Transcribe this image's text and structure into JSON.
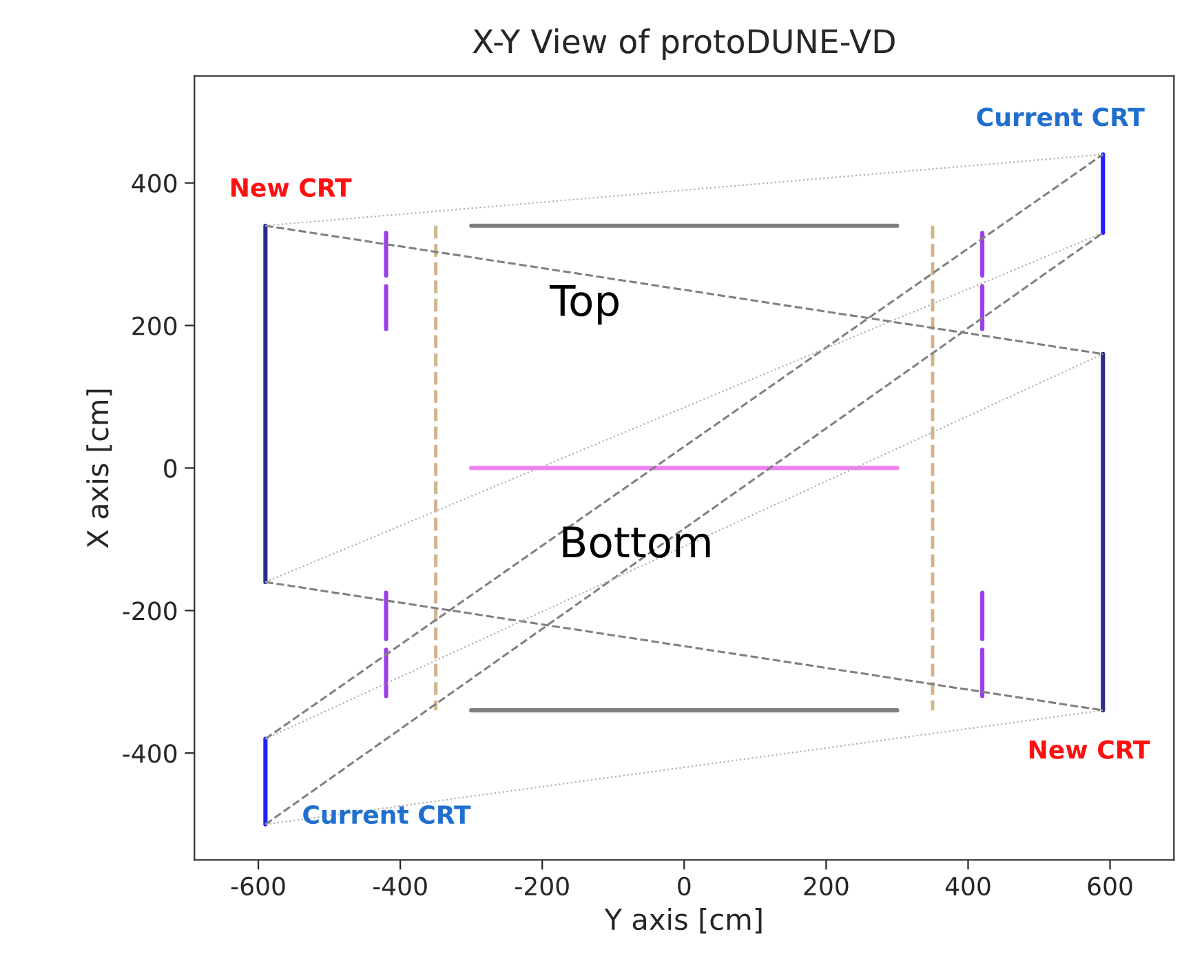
{
  "chart_data": {
    "type": "line",
    "title": "X-Y View of protoDUNE-VD",
    "xlabel": "Y axis [cm]",
    "ylabel": "X axis [cm]",
    "xlim": [
      -690,
      690
    ],
    "ylim": [
      -550,
      550
    ],
    "xticks": [
      -600,
      -400,
      -200,
      0,
      200,
      400,
      600
    ],
    "yticks": [
      -400,
      -200,
      0,
      200,
      400
    ],
    "grid": false,
    "legend": false,
    "series": [
      {
        "x": [
          -590,
          -590
        ],
        "values": [
          340,
          -160
        ],
        "color": "#2b2b8f",
        "line_style": "solid"
      },
      {
        "x": [
          590,
          590
        ],
        "values": [
          160,
          -340
        ],
        "color": "#2b2b8f",
        "line_style": "solid"
      },
      {
        "x": [
          590,
          590
        ],
        "values": [
          440,
          330
        ],
        "color": "#2020ff",
        "line_style": "solid"
      },
      {
        "x": [
          -590,
          -590
        ],
        "values": [
          -380,
          -500
        ],
        "color": "#2020ff",
        "line_style": "solid"
      },
      {
        "x": [
          -300,
          300
        ],
        "values": [
          340,
          340
        ],
        "color": "#808080",
        "line_style": "solid"
      },
      {
        "x": [
          -300,
          300
        ],
        "values": [
          -340,
          -340
        ],
        "color": "#808080",
        "line_style": "solid"
      },
      {
        "x": [
          -300,
          300
        ],
        "values": [
          0,
          0
        ],
        "color": "#ee82ee",
        "line_style": "solid"
      },
      {
        "x": [
          -350,
          -350
        ],
        "values": [
          340,
          -340
        ],
        "color": "#d2b48c",
        "line_style": "dashed"
      },
      {
        "x": [
          350,
          350
        ],
        "values": [
          340,
          -340
        ],
        "color": "#d2b48c",
        "line_style": "dashed"
      },
      {
        "x": [
          -420,
          -420
        ],
        "values": [
          330,
          270
        ],
        "color": "#9b40e8",
        "line_style": "solid"
      },
      {
        "x": [
          -420,
          -420
        ],
        "values": [
          255,
          195
        ],
        "color": "#9b40e8",
        "line_style": "solid"
      },
      {
        "x": [
          -420,
          -420
        ],
        "values": [
          -175,
          -240
        ],
        "color": "#9b40e8",
        "line_style": "solid"
      },
      {
        "x": [
          -420,
          -420
        ],
        "values": [
          -255,
          -320
        ],
        "color": "#9b40e8",
        "line_style": "solid"
      },
      {
        "x": [
          420,
          420
        ],
        "values": [
          330,
          270
        ],
        "color": "#9b40e8",
        "line_style": "solid"
      },
      {
        "x": [
          420,
          420
        ],
        "values": [
          255,
          195
        ],
        "color": "#9b40e8",
        "line_style": "solid"
      },
      {
        "x": [
          420,
          420
        ],
        "values": [
          -175,
          -240
        ],
        "color": "#9b40e8",
        "line_style": "solid"
      },
      {
        "x": [
          420,
          420
        ],
        "values": [
          -255,
          -320
        ],
        "color": "#9b40e8",
        "line_style": "solid"
      },
      {
        "x": [
          -590,
          590
        ],
        "values": [
          340,
          160
        ],
        "color": "#808080",
        "line_style": "dashed"
      },
      {
        "x": [
          -590,
          590
        ],
        "values": [
          -160,
          -340
        ],
        "color": "#808080",
        "line_style": "dashed"
      },
      {
        "x": [
          -590,
          590
        ],
        "values": [
          -380,
          440
        ],
        "color": "#808080",
        "line_style": "dashed"
      },
      {
        "x": [
          -590,
          590
        ],
        "values": [
          -500,
          330
        ],
        "color": "#808080",
        "line_style": "dashed"
      },
      {
        "x": [
          -590,
          590
        ],
        "values": [
          340,
          440
        ],
        "color": "#b0b0b0",
        "line_style": "dotted"
      },
      {
        "x": [
          -590,
          590
        ],
        "values": [
          -160,
          330
        ],
        "color": "#b0b0b0",
        "line_style": "dotted"
      },
      {
        "x": [
          -590,
          590
        ],
        "values": [
          -380,
          160
        ],
        "color": "#b0b0b0",
        "line_style": "dotted"
      },
      {
        "x": [
          -590,
          590
        ],
        "values": [
          -500,
          -340
        ],
        "color": "#b0b0b0",
        "line_style": "dotted"
      }
    ],
    "annotations": [
      "New CRT",
      "Current CRT",
      "New CRT",
      "Current CRT",
      "Top",
      "Bottom"
    ]
  }
}
